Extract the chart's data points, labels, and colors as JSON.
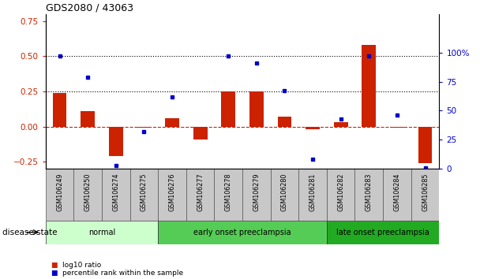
{
  "title": "GDS2080 / 43063",
  "samples": [
    "GSM106249",
    "GSM106250",
    "GSM106274",
    "GSM106275",
    "GSM106276",
    "GSM106277",
    "GSM106278",
    "GSM106279",
    "GSM106280",
    "GSM106281",
    "GSM106282",
    "GSM106283",
    "GSM106284",
    "GSM106285"
  ],
  "log10_ratio": [
    0.24,
    0.11,
    -0.21,
    -0.01,
    0.06,
    -0.09,
    0.25,
    0.25,
    0.07,
    -0.02,
    0.03,
    0.58,
    -0.01,
    -0.26
  ],
  "percentile_rank": [
    97,
    79,
    3,
    32,
    62,
    null,
    97,
    91,
    67,
    8,
    43,
    97,
    46,
    1
  ],
  "ylim_left": [
    -0.3,
    0.8
  ],
  "ylim_right": [
    0,
    133.33
  ],
  "yticks_left": [
    -0.25,
    0,
    0.25,
    0.5,
    0.75
  ],
  "yticks_right": [
    0,
    25,
    50,
    75,
    100
  ],
  "ytick_right_labels": [
    "0",
    "25",
    "50",
    "75",
    "100%"
  ],
  "hlines": [
    0.5,
    0.25
  ],
  "bar_color": "#cc2200",
  "dot_color": "#0000cc",
  "zero_line_color": "#cc2200",
  "groups": [
    {
      "label": "normal",
      "start": 0,
      "end": 3,
      "color": "#ccffcc"
    },
    {
      "label": "early onset preeclampsia",
      "start": 4,
      "end": 9,
      "color": "#55cc55"
    },
    {
      "label": "late onset preeclampsia",
      "start": 10,
      "end": 13,
      "color": "#22aa22"
    }
  ],
  "legend_items": [
    {
      "label": "log10 ratio",
      "color": "#cc2200"
    },
    {
      "label": "percentile rank within the sample",
      "color": "#0000cc"
    }
  ],
  "disease_state_label": "disease state",
  "background_color": "#ffffff",
  "tick_label_color_left": "#cc2200",
  "tick_label_color_right": "#0000cc",
  "title_fontsize": 9,
  "bar_width": 0.5
}
